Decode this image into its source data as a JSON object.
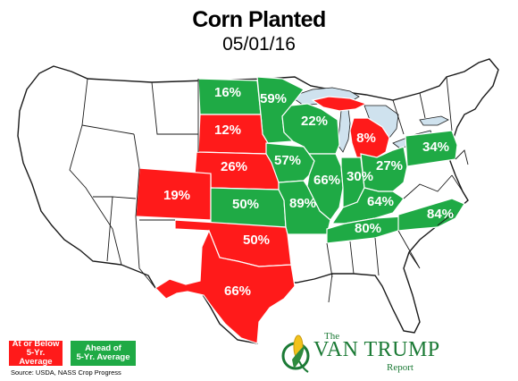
{
  "title": "Corn Planted",
  "date": "05/01/16",
  "colors": {
    "at_or_below": "#ff1a1a",
    "ahead": "#1faa45",
    "no_data": "#ffffff",
    "lakes": "#cfe2ee"
  },
  "legend": {
    "red_line1": "At or Below",
    "red_line2": "5-Yr. Average",
    "green_line1": "Ahead of",
    "green_line2": "5-Yr. Average"
  },
  "source": "Source: USDA, NASS Crop Progress",
  "logo": {
    "the": "The",
    "name": "VAN TRUMP",
    "report": "Report"
  },
  "states": [
    {
      "state": "North Dakota",
      "label": "16%",
      "status": "ahead"
    },
    {
      "state": "Minnesota",
      "label": "59%",
      "status": "ahead"
    },
    {
      "state": "Wisconsin",
      "label": "22%",
      "status": "ahead"
    },
    {
      "state": "Michigan",
      "label": "8%",
      "status": "below"
    },
    {
      "state": "South Dakota",
      "label": "12%",
      "status": "below"
    },
    {
      "state": "Nebraska",
      "label": "26%",
      "status": "below"
    },
    {
      "state": "Iowa",
      "label": "57%",
      "status": "ahead"
    },
    {
      "state": "Illinois",
      "label": "66%",
      "status": "ahead"
    },
    {
      "state": "Indiana",
      "label": "30%",
      "status": "ahead"
    },
    {
      "state": "Ohio",
      "label": "27%",
      "status": "ahead"
    },
    {
      "state": "Pennsylvania",
      "label": "34%",
      "status": "ahead"
    },
    {
      "state": "Colorado",
      "label": "19%",
      "status": "below"
    },
    {
      "state": "Kansas",
      "label": "50%",
      "status": "ahead"
    },
    {
      "state": "Missouri",
      "label": "89%",
      "status": "ahead"
    },
    {
      "state": "Kentucky",
      "label": "64%",
      "status": "ahead"
    },
    {
      "state": "North Carolina",
      "label": "84%",
      "status": "ahead"
    },
    {
      "state": "Tennessee",
      "label": "80%",
      "status": "ahead"
    },
    {
      "state": "Oklahoma",
      "label": "50%",
      "status": "below"
    },
    {
      "state": "Texas",
      "label": "66%",
      "status": "below"
    }
  ]
}
